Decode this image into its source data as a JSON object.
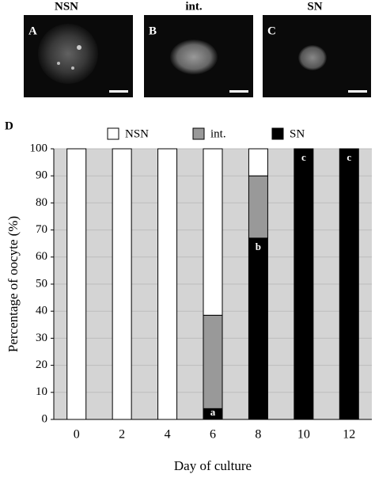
{
  "image_panels": [
    {
      "title": "NSN",
      "letter": "A"
    },
    {
      "title": "int.",
      "letter": "B"
    },
    {
      "title": "SN",
      "letter": "C"
    }
  ],
  "chart_data": {
    "type": "stacked_bar",
    "panel_label": "D",
    "x_label": "Day of culture",
    "y_label": "Percentage of oocyte (%)",
    "categories": [
      "0",
      "2",
      "4",
      "6",
      "8",
      "10",
      "12"
    ],
    "series": [
      {
        "name": "NSN",
        "color": "#ffffff",
        "values": [
          100,
          100,
          100,
          61.5,
          10,
          0,
          0
        ]
      },
      {
        "name": "int.",
        "color": "#999999",
        "values": [
          0,
          0,
          0,
          34.5,
          23,
          0,
          0
        ]
      },
      {
        "name": "SN",
        "color": "#000000",
        "values": [
          0,
          0,
          0,
          4,
          67,
          100,
          100
        ]
      }
    ],
    "significance": [
      null,
      null,
      null,
      "a",
      "b",
      "c",
      "c"
    ],
    "ylim": [
      0,
      100
    ],
    "yticks": [
      0,
      10,
      20,
      30,
      40,
      50,
      60,
      70,
      80,
      90,
      100
    ],
    "grid": true
  }
}
